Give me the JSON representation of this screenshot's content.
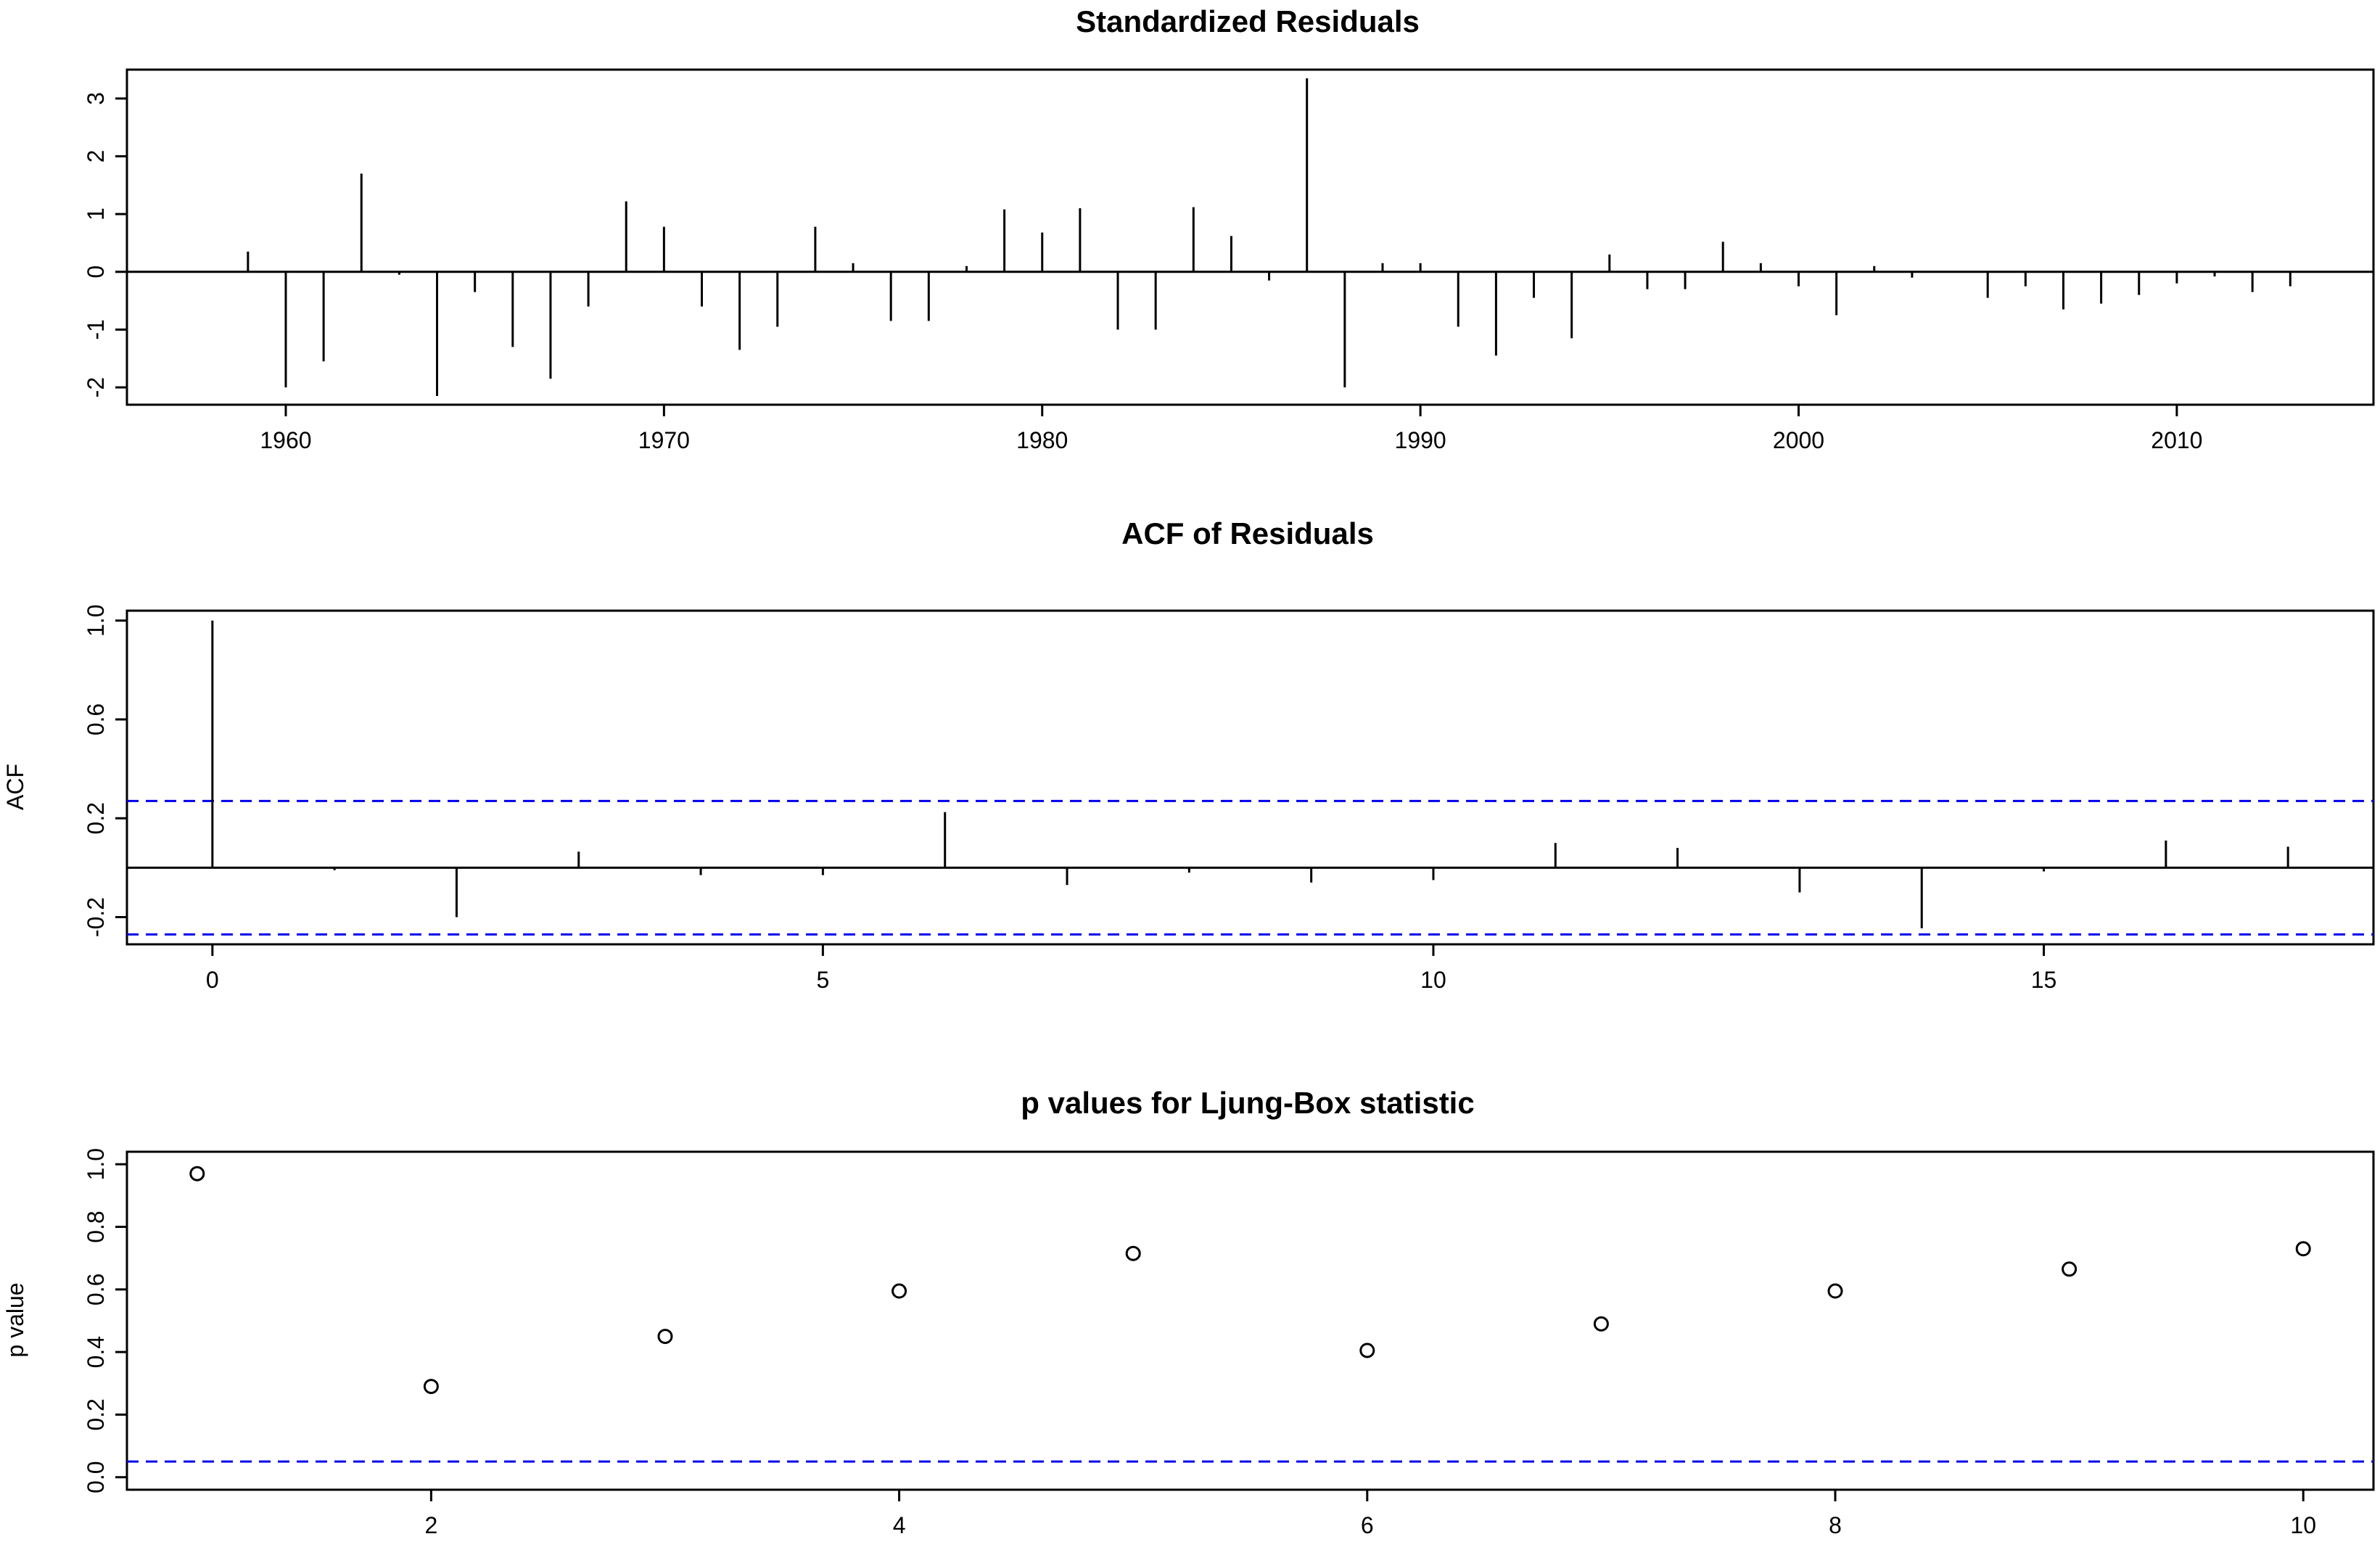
{
  "chart_data": [
    {
      "type": "bar",
      "title": "Standardized Residuals",
      "ylabel": "",
      "xlim": [
        1955.8,
        2015.2
      ],
      "ylim": [
        -2.3,
        3.5
      ],
      "xticks": [
        1960,
        1970,
        1980,
        1990,
        2000,
        2010
      ],
      "yticks": [
        -2,
        -1,
        0,
        1,
        2,
        3
      ],
      "reference_lines": [
        {
          "y": 0,
          "color": "#000000",
          "style": "solid"
        }
      ],
      "x": [
        1959,
        1960,
        1961,
        1962,
        1963,
        1964,
        1965,
        1966,
        1967,
        1968,
        1969,
        1970,
        1971,
        1972,
        1973,
        1974,
        1975,
        1976,
        1977,
        1978,
        1979,
        1980,
        1981,
        1982,
        1983,
        1984,
        1985,
        1986,
        1987,
        1988,
        1989,
        1990,
        1991,
        1992,
        1993,
        1994,
        1995,
        1996,
        1997,
        1998,
        1999,
        2000,
        2001,
        2002,
        2003,
        2004,
        2005,
        2006,
        2007,
        2008,
        2009,
        2010,
        2011,
        2012,
        2013
      ],
      "values": [
        0.35,
        -2.0,
        -1.55,
        1.7,
        -0.05,
        -2.15,
        -0.35,
        -1.3,
        -1.85,
        -0.6,
        1.22,
        0.78,
        -0.6,
        -1.35,
        -0.95,
        0.78,
        0.15,
        -0.85,
        -0.85,
        0.1,
        1.08,
        0.68,
        1.1,
        -1.0,
        -1.0,
        1.12,
        0.62,
        -0.15,
        3.35,
        -2.0,
        0.15,
        0.15,
        -0.95,
        -1.45,
        -0.45,
        -1.15,
        0.3,
        -0.3,
        -0.3,
        0.52,
        0.15,
        -0.25,
        -0.75,
        0.1,
        -0.1,
        0.0,
        -0.45,
        -0.25,
        -0.65,
        -0.55,
        -0.4,
        -0.2,
        -0.08,
        -0.35,
        -0.25
      ]
    },
    {
      "type": "bar",
      "title": "ACF of Residuals",
      "ylabel": "ACF",
      "xlim": [
        -0.7,
        17.7
      ],
      "ylim": [
        -0.31,
        1.04
      ],
      "xticks": [
        0,
        5,
        10,
        15
      ],
      "yticks": [
        -0.2,
        0.2,
        0.6,
        1.0
      ],
      "ytick_labels": [
        "-0.2",
        "0.2",
        "0.6",
        "1.0"
      ],
      "reference_lines": [
        {
          "y": 0,
          "color": "#000000",
          "style": "solid"
        },
        {
          "y": 0.27,
          "color": "#0000ee",
          "style": "dashed"
        },
        {
          "y": -0.27,
          "color": "#0000ee",
          "style": "dashed"
        }
      ],
      "x": [
        0,
        1,
        2,
        3,
        4,
        5,
        6,
        7,
        8,
        9,
        10,
        11,
        12,
        13,
        14,
        15,
        16,
        17
      ],
      "values": [
        1.0,
        -0.01,
        -0.2,
        0.065,
        -0.03,
        -0.03,
        0.225,
        -0.07,
        -0.02,
        -0.06,
        -0.05,
        0.1,
        0.08,
        -0.1,
        -0.245,
        -0.015,
        0.11,
        0.085
      ]
    },
    {
      "type": "scatter",
      "title": "p values for Ljung-Box statistic",
      "ylabel": "p value",
      "xlim": [
        0.7,
        10.3
      ],
      "ylim": [
        -0.04,
        1.04
      ],
      "xticks": [
        2,
        4,
        6,
        8,
        10
      ],
      "yticks": [
        0.0,
        0.2,
        0.4,
        0.6,
        0.8,
        1.0
      ],
      "ytick_labels": [
        "0.0",
        "0.2",
        "0.4",
        "0.6",
        "0.8",
        "1.0"
      ],
      "reference_lines": [
        {
          "y": 0.05,
          "color": "#0000ee",
          "style": "dashed"
        }
      ],
      "x": [
        1,
        2,
        3,
        4,
        5,
        6,
        7,
        8,
        9,
        10
      ],
      "values": [
        0.97,
        0.29,
        0.45,
        0.595,
        0.715,
        0.405,
        0.49,
        0.595,
        0.665,
        0.73
      ]
    }
  ]
}
